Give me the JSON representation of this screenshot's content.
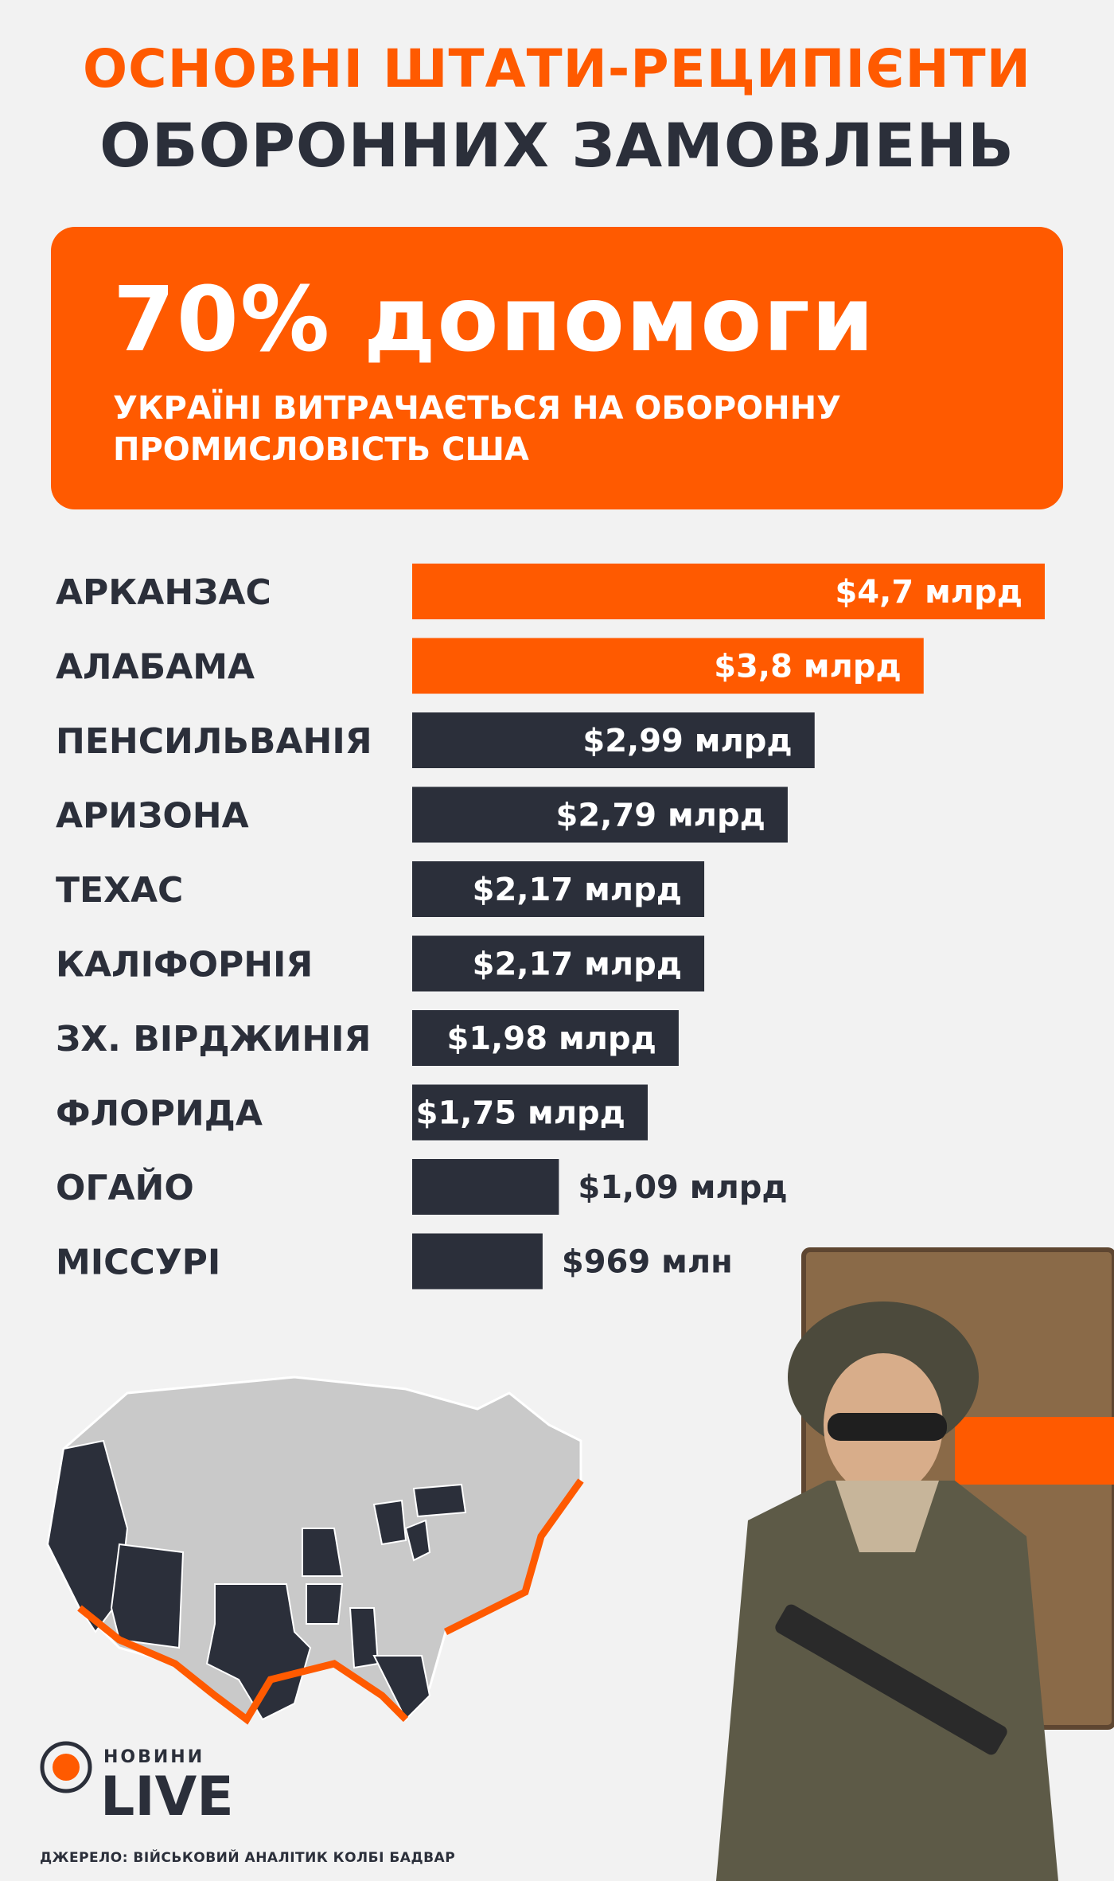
{
  "header": {
    "title_line1": "ОСНОВНІ ШТАТИ-РЕЦИПІЄНТИ",
    "title_line2": "ОБОРОННИХ ЗАМОВЛЕНЬ"
  },
  "banner": {
    "headline": "70% допомоги",
    "subtitle": "УКРАЇНІ ВИТРАЧАЄТЬСЯ НА ОБОРОННУ ПРОМИСЛОВІСТЬ США"
  },
  "chart_data": {
    "type": "bar",
    "orientation": "horizontal",
    "unit": "млрд $",
    "categories": [
      "АРКАНЗАС",
      "АЛАБАМА",
      "ПЕНСИЛЬВАНІЯ",
      "АРИЗОНА",
      "ТЕХАС",
      "КАЛІФОРНІЯ",
      "ЗХ. ВІРДЖИНІЯ",
      "ФЛОРИДА",
      "ОГАЙО",
      "МІССУРІ"
    ],
    "values": [
      4.7,
      3.8,
      2.99,
      2.79,
      2.17,
      2.17,
      1.98,
      1.75,
      1.09,
      0.969
    ],
    "value_labels": [
      "$4,7 млрд",
      "$3,8 млрд",
      "$2,99 млрд",
      "$2,79 млрд",
      "$2,17 млрд",
      "$2,17 млрд",
      "$1,98 млрд",
      "$1,75 млрд",
      "$1,09 млрд",
      "$969 млн"
    ],
    "highlight_count": 2,
    "colors": {
      "highlight": "#ff5a00",
      "default": "#2b2f3a",
      "label_inside": "#ffffff",
      "label_outside": "#2b2f3a"
    }
  },
  "logo": {
    "small": "НОВИНИ",
    "big": "LIVE"
  },
  "source": "ДЖЕРЕЛО: ВІЙСЬКОВИЙ АНАЛІТИК КОЛБІ БАДВАР",
  "colors": {
    "accent": "#ff5a00",
    "dark": "#2b2f3a",
    "background": "#f2f2f2"
  }
}
